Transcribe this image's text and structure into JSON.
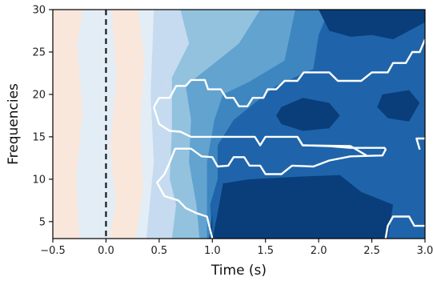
{
  "chart_data": {
    "type": "heatmap",
    "title": "",
    "xlabel": "Time (s)",
    "ylabel": "Frequencies",
    "xlim": [
      -0.5,
      3.0
    ],
    "ylim": [
      3,
      30
    ],
    "xticks": [
      -0.5,
      0.0,
      0.5,
      1.0,
      1.5,
      2.0,
      2.5,
      3.0
    ],
    "xtick_labels": [
      "−0.5",
      "0.0",
      "0.5",
      "1.0",
      "1.5",
      "2.0",
      "2.5",
      "3.0"
    ],
    "yticks": [
      5,
      10,
      15,
      20,
      25,
      30
    ],
    "ytick_labels": [
      "5",
      "10",
      "15",
      "20",
      "25",
      "30"
    ],
    "colormap": "RdBu_r (blue = decrease)",
    "colors": {
      "level_pos": "#fae7dc",
      "level_0": "#e3edf6",
      "level_1": "#c6dbef",
      "level_2": "#93c2df",
      "level_3": "#62a3d0",
      "level_4": "#3d86bf",
      "level_5": "#1f64aa",
      "level_6": "#0a3e7a",
      "significance": "#ffffff",
      "event_marker": "#1a1a1a"
    },
    "regions": [
      {
        "level": "level_pos",
        "polygons": [
          [
            [
              -0.5,
              3
            ],
            [
              -0.25,
              3
            ],
            [
              -0.28,
              10
            ],
            [
              -0.22,
              18
            ],
            [
              -0.27,
              26
            ],
            [
              -0.22,
              30
            ],
            [
              -0.5,
              30
            ]
          ],
          [
            [
              0.03,
              3
            ],
            [
              0.28,
              3
            ],
            [
              0.35,
              9
            ],
            [
              0.32,
              16
            ],
            [
              0.36,
              24
            ],
            [
              0.3,
              30
            ],
            [
              0.05,
              30
            ],
            [
              0.1,
              22
            ],
            [
              0.04,
              14
            ],
            [
              0.09,
              7
            ]
          ]
        ]
      },
      {
        "level": "level_1",
        "polygons": [
          [
            [
              0.38,
              3
            ],
            [
              0.55,
              3
            ],
            [
              0.5,
              12
            ],
            [
              0.58,
              20
            ],
            [
              0.5,
              30
            ],
            [
              0.45,
              30
            ],
            [
              0.42,
              20
            ],
            [
              0.45,
              12
            ]
          ],
          [
            [
              0.55,
              3
            ],
            [
              3.0,
              3
            ],
            [
              3.0,
              30
            ],
            [
              0.5,
              30
            ],
            [
              0.58,
              20
            ],
            [
              0.5,
              12
            ]
          ]
        ]
      },
      {
        "level": "level_2",
        "polygons": [
          [
            [
              0.62,
              3
            ],
            [
              3.0,
              3
            ],
            [
              3.0,
              30
            ],
            [
              0.7,
              30
            ],
            [
              0.78,
              26
            ],
            [
              0.62,
              22
            ],
            [
              0.62,
              16
            ],
            [
              0.6,
              10
            ],
            [
              0.66,
              7
            ]
          ]
        ]
      },
      {
        "level": "level_3",
        "polygons": [
          [
            [
              0.88,
              3
            ],
            [
              3.0,
              3
            ],
            [
              3.0,
              30
            ],
            [
              1.45,
              30
            ],
            [
              1.25,
              26
            ],
            [
              1.05,
              24
            ],
            [
              0.75,
              21
            ],
            [
              0.8,
              17
            ],
            [
              0.78,
              12
            ],
            [
              0.85,
              7
            ]
          ]
        ]
      },
      {
        "level": "level_4",
        "polygons": [
          [
            [
              0.95,
              3
            ],
            [
              3.0,
              3
            ],
            [
              3.0,
              30
            ],
            [
              1.78,
              30
            ],
            [
              1.68,
              24
            ],
            [
              1.35,
              21.5
            ],
            [
              1.1,
              20
            ],
            [
              1.02,
              17
            ],
            [
              0.95,
              12
            ],
            [
              0.95,
              7
            ]
          ]
        ]
      },
      {
        "level": "level_5",
        "polygons": [
          [
            [
              1.0,
              3
            ],
            [
              3.0,
              3
            ],
            [
              3.0,
              30
            ],
            [
              2.1,
              30
            ],
            [
              2.0,
              27
            ],
            [
              1.95,
              23
            ],
            [
              1.6,
              21
            ],
            [
              1.2,
              17
            ],
            [
              1.05,
              14
            ],
            [
              1.05,
              10
            ],
            [
              0.98,
              7
            ]
          ]
        ]
      },
      {
        "level": "level_6",
        "polygons": [
          [
            [
              1.0,
              3
            ],
            [
              2.65,
              3
            ],
            [
              2.7,
              7
            ],
            [
              2.4,
              8.5
            ],
            [
              2.2,
              10.5
            ],
            [
              1.8,
              10.3
            ],
            [
              1.35,
              10
            ],
            [
              1.1,
              9.5
            ],
            [
              1.05,
              6
            ]
          ],
          [
            [
              2.0,
              30
            ],
            [
              3.0,
              30
            ],
            [
              3.0,
              28.5
            ],
            [
              2.85,
              27.5
            ],
            [
              2.7,
              26.5
            ],
            [
              2.5,
              27
            ],
            [
              2.3,
              26.8
            ],
            [
              2.1,
              27.5
            ]
          ],
          [
            [
              1.65,
              18.5
            ],
            [
              1.85,
              19.6
            ],
            [
              2.1,
              19
            ],
            [
              2.2,
              17.5
            ],
            [
              2.1,
              16
            ],
            [
              1.85,
              15.7
            ],
            [
              1.65,
              16.5
            ],
            [
              1.6,
              17.5
            ]
          ],
          [
            [
              2.6,
              20
            ],
            [
              2.85,
              20.5
            ],
            [
              2.95,
              19
            ],
            [
              2.85,
              16.8
            ],
            [
              2.65,
              17.2
            ],
            [
              2.55,
              18.5
            ]
          ],
          [
            [
              0.97,
              3
            ],
            [
              1.0,
              6
            ],
            [
              1.0,
              3
            ]
          ]
        ]
      }
    ],
    "significance_contours": [
      [
        [
          0.45,
          18.5
        ],
        [
          0.5,
          19.6
        ],
        [
          0.6,
          19.6
        ],
        [
          0.66,
          21
        ],
        [
          0.75,
          21
        ],
        [
          0.8,
          21.7
        ],
        [
          0.93,
          21.7
        ],
        [
          0.96,
          20.6
        ],
        [
          1.08,
          20.6
        ],
        [
          1.13,
          19.6
        ],
        [
          1.2,
          19.6
        ],
        [
          1.25,
          18.6
        ],
        [
          1.33,
          18.6
        ],
        [
          1.38,
          19.6
        ],
        [
          1.48,
          19.6
        ],
        [
          1.52,
          20.6
        ],
        [
          1.6,
          20.6
        ],
        [
          1.68,
          21.6
        ],
        [
          1.8,
          21.6
        ],
        [
          1.86,
          22.6
        ],
        [
          2.1,
          22.6
        ],
        [
          2.18,
          21.6
        ],
        [
          2.4,
          21.6
        ],
        [
          2.5,
          22.6
        ],
        [
          2.65,
          22.6
        ],
        [
          2.7,
          23.7
        ],
        [
          2.82,
          23.7
        ],
        [
          2.88,
          25
        ],
        [
          2.95,
          25
        ],
        [
          3.0,
          26.5
        ]
      ],
      [
        [
          0.45,
          18.5
        ],
        [
          0.5,
          16.5
        ],
        [
          0.6,
          15.7
        ],
        [
          0.7,
          15.6
        ],
        [
          0.8,
          15
        ],
        [
          1.4,
          15
        ],
        [
          1.45,
          14
        ],
        [
          1.5,
          15
        ],
        [
          1.8,
          15
        ],
        [
          1.85,
          14
        ],
        [
          2.1,
          13.9
        ],
        [
          2.3,
          13.7
        ],
        [
          2.62,
          13.7
        ],
        [
          2.63,
          13.5
        ],
        [
          2.6,
          12.8
        ],
        [
          2.3,
          12.7
        ],
        [
          2.1,
          12.2
        ],
        [
          1.95,
          11.5
        ],
        [
          1.75,
          11.6
        ],
        [
          1.65,
          10.6
        ],
        [
          1.5,
          10.6
        ],
        [
          1.45,
          11.6
        ],
        [
          1.35,
          11.6
        ],
        [
          1.3,
          12.6
        ],
        [
          1.2,
          12.6
        ],
        [
          1.15,
          11.6
        ],
        [
          1.05,
          11.5
        ],
        [
          1.0,
          12.6
        ],
        [
          0.9,
          12.7
        ],
        [
          0.8,
          13.6
        ],
        [
          0.65,
          13.6
        ],
        [
          0.6,
          12
        ],
        [
          0.55,
          10.6
        ],
        [
          0.48,
          9.6
        ],
        [
          0.55,
          8
        ],
        [
          0.68,
          7.5
        ],
        [
          0.75,
          6.6
        ],
        [
          0.85,
          6
        ],
        [
          0.95,
          5.6
        ],
        [
          1.0,
          3
        ]
      ],
      [
        [
          1.8,
          15
        ],
        [
          1.85,
          14
        ],
        [
          2.3,
          13.9
        ],
        [
          2.45,
          12.8
        ]
      ],
      [
        [
          2.95,
          13.5
        ],
        [
          2.92,
          14.8
        ],
        [
          3.0,
          14.8
        ]
      ],
      [
        [
          2.63,
          3
        ],
        [
          2.65,
          4.5
        ],
        [
          2.7,
          5.6
        ],
        [
          2.85,
          5.6
        ],
        [
          2.9,
          4.5
        ],
        [
          3.0,
          4.5
        ]
      ]
    ],
    "event_marker_x": 0.0
  }
}
